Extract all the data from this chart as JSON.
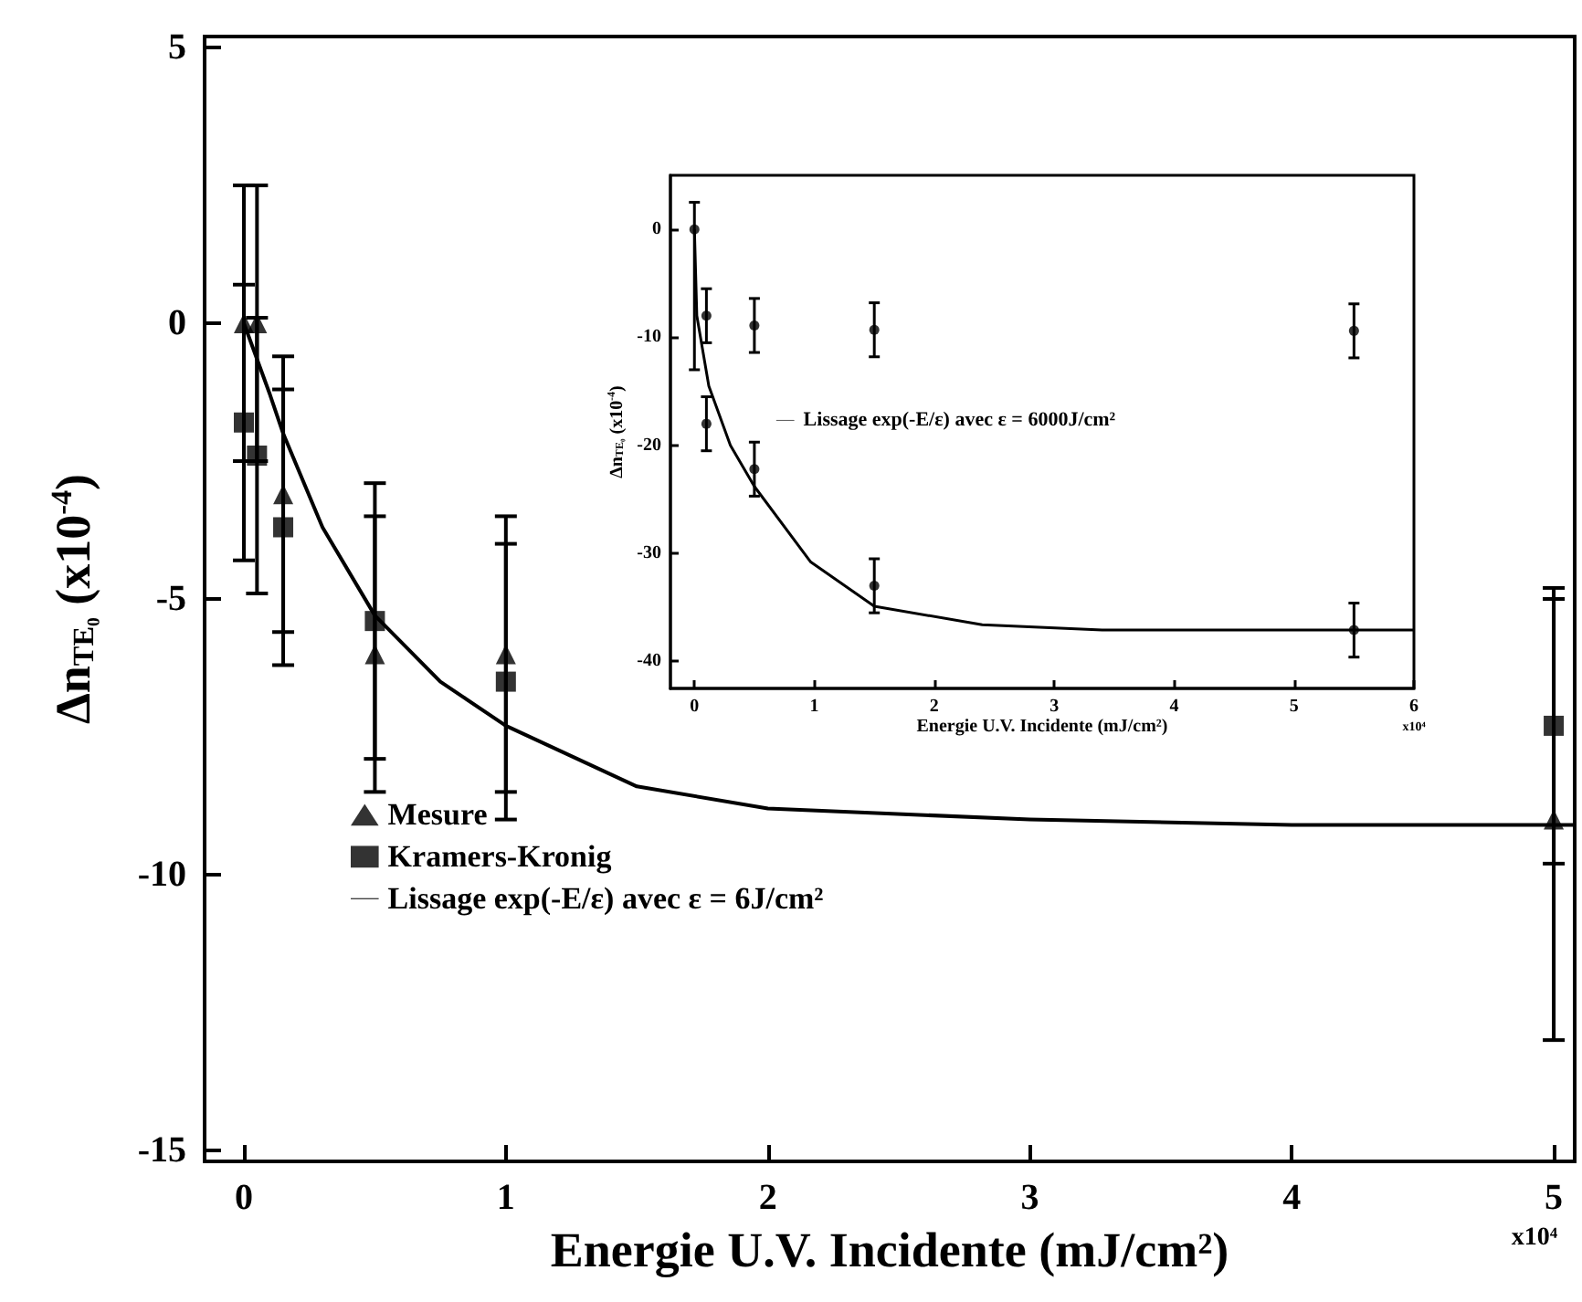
{
  "chart_data": [
    {
      "type": "scatter",
      "xlabel": "Energie U.V. Incidente (mJ/cm²)",
      "ylabel": "Δn$_{TE₀}$ (x10$^{-4}$)",
      "xlim": [
        -0.15,
        5.08
      ],
      "ylim": [
        -15.2,
        5.2
      ],
      "xticks": [
        0,
        1,
        2,
        3,
        4,
        5
      ],
      "yticks": [
        -15,
        -10,
        -5,
        0,
        5
      ],
      "legend": "left",
      "annotations": [
        "x10⁴"
      ],
      "series": [
        {
          "name": "Mesure",
          "marker": "triangle",
          "color": "#000000",
          "x": [
            0,
            0.05,
            0.15,
            0.5,
            1,
            5
          ],
          "values": [
            0,
            0,
            -3.1,
            -6,
            -6,
            -9
          ],
          "errors": [
            2.5,
            2.5,
            2.5,
            2.5,
            2.5,
            4
          ]
        },
        {
          "name": "Kramers-Kronig",
          "marker": "square",
          "color": "#000000",
          "x": [
            0,
            0.05,
            0.15,
            0.5,
            1,
            5
          ],
          "values": [
            -1.8,
            -2.4,
            -3.7,
            -5.4,
            -6.5,
            -7.3
          ],
          "errors": [
            2.5,
            2.5,
            2.5,
            2.5,
            2.5,
            2.5
          ]
        },
        {
          "name": "Lissage exp(-E/ε) avec ε = 6J/cm²",
          "type": "line",
          "marker": "none",
          "line_style": "solid",
          "color": "#000000",
          "x": [
            0,
            0.1,
            0.15,
            0.3,
            0.5,
            0.75,
            1,
            1.5,
            2,
            3,
            4,
            5.08
          ],
          "values": [
            0,
            -1.3,
            -2,
            -3.7,
            -5.3,
            -6.5,
            -7.3,
            -8.4,
            -8.8,
            -9,
            -9.1,
            -9.1
          ]
        }
      ]
    },
    {
      "type": "scatter",
      "xlabel": "Energie U.V. Incidente (mJ/cm²)",
      "ylabel": "Δn$_{TE₀}$ (x10$^{-4}$)",
      "xlim": [
        -0.2,
        6
      ],
      "ylim": [
        -42.5,
        5
      ],
      "xticks": [
        0,
        1,
        2,
        3,
        4,
        5,
        6
      ],
      "yticks": [
        -40,
        -30,
        -20,
        -10,
        0
      ],
      "legend": "center",
      "annotations": [
        "x10⁴"
      ],
      "series": [
        {
          "marker": "circle",
          "color": "#000000",
          "x": [
            0,
            0.1,
            0.1,
            0.5,
            0.5,
            1.5,
            1.5,
            5.5,
            5.5
          ],
          "values": [
            0,
            -8,
            -18,
            -8.9,
            -22.2,
            -9.3,
            -33,
            -9.4,
            -37.1
          ],
          "errors": [
            [
              -13,
              2.5
            ],
            2.5,
            2.5,
            2.5,
            2.5,
            2.5,
            2.5,
            2.5,
            2.5
          ]
        },
        {
          "name": "Lissage exp(-E/ε) avec ε = 6000J/cm²",
          "type": "line",
          "marker": "none",
          "line_style": "solid",
          "color": "#000000",
          "x": [
            0,
            0.02,
            0.12,
            0.3,
            0.5,
            0.97,
            1.5,
            2.4,
            3.4,
            6
          ],
          "values": [
            0,
            -8,
            -14.5,
            -20,
            -23.8,
            -30.8,
            -34.9,
            -36.6,
            -37.1,
            -37.1
          ]
        }
      ]
    }
  ]
}
